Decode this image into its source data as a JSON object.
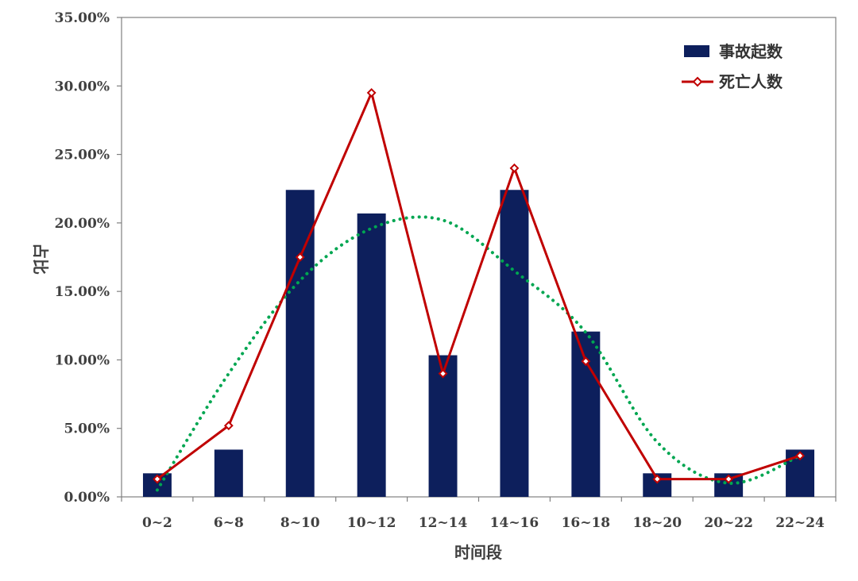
{
  "chart_data": {
    "type": "bar",
    "categories": [
      "0~2",
      "6~8",
      "8~10",
      "10~12",
      "12~14",
      "14~16",
      "16~18",
      "18~20",
      "20~22",
      "22~24"
    ],
    "series": [
      {
        "name": "事故起数",
        "type": "bar",
        "color": "#0d1f5c",
        "values": [
          1.72,
          3.45,
          22.41,
          20.69,
          10.34,
          22.41,
          12.07,
          1.72,
          1.72,
          3.45
        ]
      },
      {
        "name": "死亡人数",
        "type": "line",
        "marker": "diamond",
        "color": "#c00000",
        "values": [
          1.3,
          5.2,
          17.5,
          29.5,
          9.0,
          24.0,
          9.9,
          1.3,
          1.3,
          3.0
        ]
      },
      {
        "type": "trendline",
        "style": "dotted",
        "color": "#00a651",
        "values": [
          0.5,
          9.0,
          15.8,
          19.6,
          20.2,
          16.5,
          12.0,
          4.0,
          1.0,
          3.0
        ]
      }
    ],
    "ylabel": "占比",
    "xlabel": "时间段",
    "ylim": [
      0,
      35
    ],
    "yticks": [
      "0.00%",
      "5.00%",
      "10.00%",
      "15.00%",
      "20.00%",
      "25.00%",
      "30.00%",
      "35.00%"
    ],
    "legend_position": "top-right",
    "grid": false
  }
}
